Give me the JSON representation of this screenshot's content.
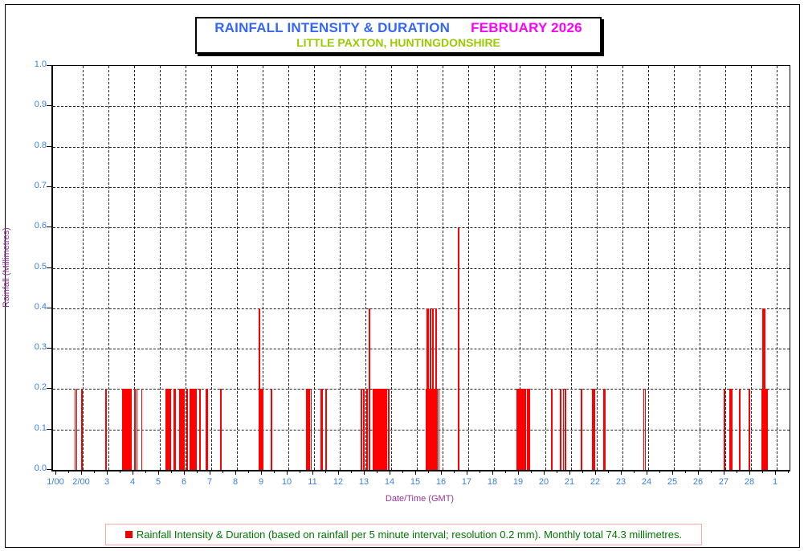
{
  "title": {
    "main": "RAINFALL INTENSITY & DURATION",
    "period": "FEBRUARY 2026",
    "location": "LITTLE PAXTON, HUNTINGDONSHIRE"
  },
  "axes": {
    "y_title": "Rainfall (Millimetres)",
    "x_title": "Date/Time (GMT)",
    "y_tick_labels": [
      "0.0",
      "0.1",
      "0.2",
      "0.3",
      "0.4",
      "0.5",
      "0.6",
      "0.7",
      "0.8",
      "0.9",
      "1.0"
    ],
    "x_tick_labels": [
      "1/00",
      "2/00",
      "3",
      "4",
      "5",
      "6",
      "7",
      "8",
      "9",
      "10",
      "11",
      "12",
      "13",
      "14",
      "15",
      "16",
      "17",
      "18",
      "19",
      "20",
      "21",
      "22",
      "23",
      "24",
      "25",
      "26",
      "27",
      "28",
      "1"
    ]
  },
  "legend": {
    "text": "Rainfall Intensity & Duration (based on rainfall per 5 minute interval; resolution 0.2 mm). Monthly total 74.3 millimetres.",
    "swatch_color": "#ee0000"
  },
  "colors": {
    "title_main": "#3366ff",
    "title_period": "#ff00ff",
    "title_location": "#99cc00",
    "tick_labels": "#3c7fe6",
    "axis_titles": "#993399",
    "bars": "#ff0000",
    "legend_text": "#007700",
    "legend_border": "#ffaaaa"
  },
  "chart_data": {
    "type": "bar",
    "title": "RAINFALL INTENSITY & DURATION FEBRUARY 2026 — LITTLE PAXTON, HUNTINGDONSHIRE",
    "xlabel": "Date/Time (GMT)",
    "ylabel": "Rainfall (Millimetres)",
    "ylim": [
      0.0,
      1.0
    ],
    "x_range_days": [
      1,
      29
    ],
    "x_unit": "day of February 2026 (29 = 1 March); bars are 5-minute rainfall totals",
    "resolution_mm": 0.2,
    "monthly_total_mm": 74.3,
    "grid": true,
    "legend_position": "bottom",
    "bars_format": [
      "start_day",
      "width_days",
      "rain_mm"
    ],
    "bars": [
      [
        1.672,
        0.047,
        0.2
      ],
      [
        1.734,
        0.047,
        0.2
      ],
      [
        1.938,
        0.063,
        0.2
      ],
      [
        2.875,
        0.047,
        0.2
      ],
      [
        3.531,
        0.375,
        0.2
      ],
      [
        3.984,
        0.063,
        0.2
      ],
      [
        4.078,
        0.047,
        0.2
      ],
      [
        4.266,
        0.047,
        0.2
      ],
      [
        5.219,
        0.219,
        0.2
      ],
      [
        5.531,
        0.094,
        0.2
      ],
      [
        5.75,
        0.219,
        0.2
      ],
      [
        6.016,
        0.078,
        0.2
      ],
      [
        6.141,
        0.281,
        0.2
      ],
      [
        6.516,
        0.063,
        0.2
      ],
      [
        6.766,
        0.094,
        0.2
      ],
      [
        7.328,
        0.063,
        0.2
      ],
      [
        8.844,
        0.047,
        0.4
      ],
      [
        8.906,
        0.109,
        0.2
      ],
      [
        9.313,
        0.047,
        0.2
      ],
      [
        10.688,
        0.141,
        0.2
      ],
      [
        10.859,
        0.047,
        0.2
      ],
      [
        11.234,
        0.094,
        0.2
      ],
      [
        11.422,
        0.063,
        0.2
      ],
      [
        12.797,
        0.063,
        0.2
      ],
      [
        12.906,
        0.063,
        0.2
      ],
      [
        13.04,
        0.047,
        0.2
      ],
      [
        13.125,
        0.053,
        0.4
      ],
      [
        13.29,
        0.553,
        0.2
      ],
      [
        13.885,
        0.047,
        0.2
      ],
      [
        15.344,
        0.359,
        0.2
      ],
      [
        15.375,
        0.078,
        0.4
      ],
      [
        15.484,
        0.078,
        0.4
      ],
      [
        15.594,
        0.047,
        0.4
      ],
      [
        15.719,
        0.047,
        0.4
      ],
      [
        15.772,
        0.041,
        0.2
      ],
      [
        15.828,
        0.047,
        0.2
      ],
      [
        16.594,
        0.063,
        0.6
      ],
      [
        18.875,
        0.375,
        0.2
      ],
      [
        19.281,
        0.047,
        0.2
      ],
      [
        19.344,
        0.047,
        0.2
      ],
      [
        20.219,
        0.047,
        0.2
      ],
      [
        20.563,
        0.063,
        0.2
      ],
      [
        20.672,
        0.047,
        0.2
      ],
      [
        20.75,
        0.047,
        0.2
      ],
      [
        21.375,
        0.047,
        0.2
      ],
      [
        21.813,
        0.109,
        0.2
      ],
      [
        22.234,
        0.109,
        0.2
      ],
      [
        23.797,
        0.047,
        0.2
      ],
      [
        23.859,
        0.047,
        0.2
      ],
      [
        26.938,
        0.047,
        0.2
      ],
      [
        27.156,
        0.109,
        0.2
      ],
      [
        27.531,
        0.047,
        0.2
      ],
      [
        27.906,
        0.047,
        0.2
      ],
      [
        28.406,
        0.172,
        0.2
      ],
      [
        28.428,
        0.125,
        0.4
      ],
      [
        28.594,
        0.063,
        0.2
      ]
    ]
  }
}
